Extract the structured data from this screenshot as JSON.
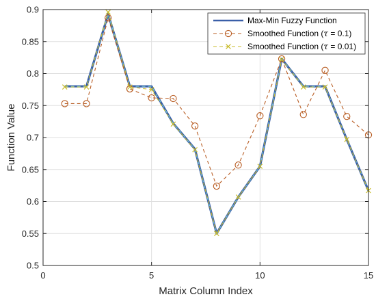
{
  "chart_data": {
    "type": "line",
    "xlabel": "Matrix Column Index",
    "ylabel": "Function Value",
    "xlim": [
      0,
      15
    ],
    "ylim": [
      0.5,
      0.9
    ],
    "xticks": [
      0,
      5,
      10,
      15
    ],
    "xtick_labels": [
      "0",
      "5",
      "10",
      "15"
    ],
    "yticks": [
      0.5,
      0.55,
      0.6,
      0.65,
      0.7,
      0.75,
      0.8,
      0.85,
      0.9
    ],
    "ytick_labels": [
      "0.5",
      "0.55",
      "0.6",
      "0.65",
      "0.7",
      "0.75",
      "0.8",
      "0.85",
      "0.9"
    ],
    "grid": true,
    "legend_position": "top-right",
    "x": [
      1,
      2,
      3,
      4,
      5,
      6,
      7,
      8,
      9,
      10,
      11,
      12,
      13,
      14,
      15
    ],
    "series": [
      {
        "name": "Max-Min Fuzzy Function",
        "name_prefix": "Max-Min Fuzzy Function",
        "name_tau": "",
        "name_suffix": "",
        "style": "solid",
        "marker": "none",
        "color": "#3a5fa8",
        "color2": "#76c4cf",
        "values": [
          0.78,
          0.78,
          0.893,
          0.78,
          0.78,
          0.722,
          0.682,
          0.55,
          0.607,
          0.655,
          0.823,
          0.78,
          0.78,
          0.697,
          0.617
        ]
      },
      {
        "name": "Smoothed Function (τ = 0.1)",
        "name_prefix": "Smoothed Function (",
        "name_tau": "τ",
        "name_suffix": " = 0.1)",
        "style": "dashed",
        "marker": "circle",
        "color": "#b85c22",
        "values": [
          0.753,
          0.753,
          0.887,
          0.776,
          0.762,
          0.761,
          0.718,
          0.624,
          0.657,
          0.734,
          0.823,
          0.736,
          0.805,
          0.733,
          0.704
        ]
      },
      {
        "name": "Smoothed Function (τ = 0.01)",
        "name_prefix": "Smoothed Function (",
        "name_tau": "τ",
        "name_suffix": " = 0.01)",
        "style": "dashed",
        "marker": "x",
        "color": "#c8bb2a",
        "values": [
          0.779,
          0.779,
          0.896,
          0.779,
          0.775,
          0.721,
          0.681,
          0.55,
          0.607,
          0.655,
          0.822,
          0.779,
          0.779,
          0.697,
          0.617
        ]
      }
    ]
  }
}
